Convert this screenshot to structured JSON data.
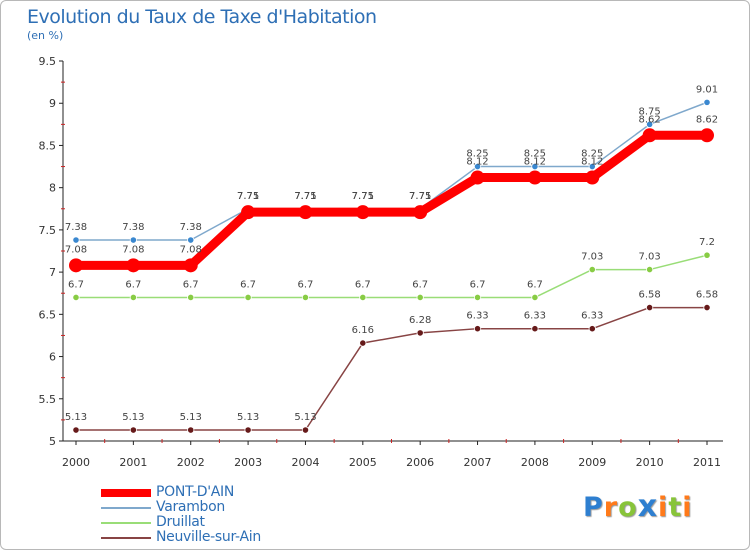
{
  "chart_data": {
    "type": "line",
    "title": "Evolution du Taux de Taxe d'Habitation",
    "subtitle": "(en %)",
    "x": [
      "2000",
      "2001",
      "2002",
      "2003",
      "2004",
      "2005",
      "2006",
      "2007",
      "2008",
      "2009",
      "2010",
      "2011"
    ],
    "ylim": [
      5,
      9.5
    ],
    "yticks": [
      "5",
      "5.5",
      "6",
      "6.5",
      "7",
      "7.5",
      "8",
      "8.5",
      "9",
      "9.5"
    ],
    "grid": false,
    "legend_position": "bottom-left",
    "series": [
      {
        "name": "PONT-D'AIN",
        "color": "#ff0000",
        "values": [
          7.08,
          7.08,
          7.08,
          7.71,
          7.71,
          7.71,
          7.71,
          8.12,
          8.12,
          8.12,
          8.62,
          8.62
        ],
        "labels": [
          "7.08",
          "7.08",
          "7.08",
          "7.71",
          "7.71",
          "7.71",
          "7.71",
          "8.12",
          "8.12",
          "8.12",
          "8.62",
          "8.62"
        ]
      },
      {
        "name": "Varambon",
        "color": "#7fa8cc",
        "marker": "#3a88d0",
        "values": [
          7.38,
          7.38,
          7.38,
          7.75,
          7.75,
          7.75,
          7.75,
          8.25,
          8.25,
          8.25,
          8.75,
          9.01
        ],
        "labels": [
          "7.38",
          "7.38",
          "7.38",
          "7.75",
          "7.75",
          "7.75",
          "7.75",
          "8.25",
          "8.25",
          "8.25",
          "8.75",
          "9.01"
        ]
      },
      {
        "name": "Druillat",
        "color": "#99dd77",
        "marker": "#88cc44",
        "values": [
          6.7,
          6.7,
          6.7,
          6.7,
          6.7,
          6.7,
          6.7,
          6.7,
          6.7,
          7.03,
          7.03,
          7.2
        ],
        "labels": [
          "6.7",
          "6.7",
          "6.7",
          "6.7",
          "6.7",
          "6.7",
          "6.7",
          "6.7",
          "6.7",
          "7.03",
          "7.03",
          "7.2"
        ]
      },
      {
        "name": "Neuville-sur-Ain",
        "color": "#884444",
        "marker": "#661a1a",
        "values": [
          5.13,
          5.13,
          5.13,
          5.13,
          5.13,
          6.16,
          6.28,
          6.33,
          6.33,
          6.33,
          6.58,
          6.58
        ],
        "labels": [
          "5.13",
          "5.13",
          "5.13",
          "5.13",
          "5.13",
          "6.16",
          "6.28",
          "6.33",
          "6.33",
          "6.33",
          "6.58",
          "6.58"
        ]
      }
    ]
  },
  "logo": {
    "letters": [
      "P",
      "r",
      "o",
      "x",
      "i",
      "t",
      "i"
    ],
    "colors": [
      "#2e7fd0",
      "#ff7a1a",
      "#88c43a",
      "#2e7fd0",
      "#ff7a1a",
      "#88c43a",
      "#ff7a1a"
    ]
  }
}
